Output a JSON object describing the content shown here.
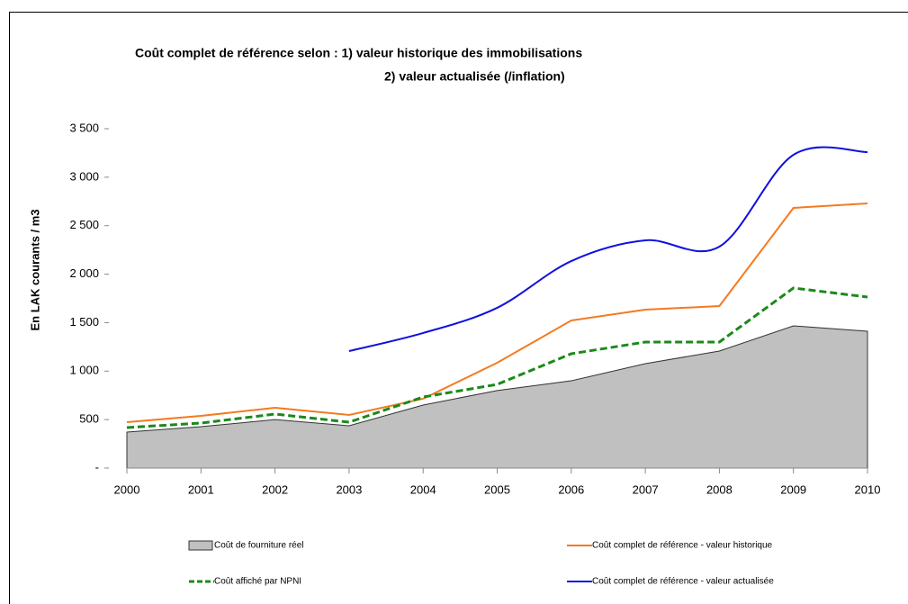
{
  "chart_data": {
    "type": "line",
    "title": "Coût complet de référence selon :   1) valeur historique des immobilisations",
    "subtitle": "2) valeur actualisée (/inflation)",
    "y_label": "En LAK courants / m3",
    "x": [
      2000,
      2001,
      2002,
      2003,
      2004,
      2005,
      2006,
      2007,
      2008,
      2009,
      2010
    ],
    "xlim": [
      2000,
      2010
    ],
    "xticks": [
      2000,
      2001,
      2002,
      2003,
      2004,
      2005,
      2006,
      2007,
      2008,
      2009,
      2010
    ],
    "ylim": [
      0,
      3500
    ],
    "yticks": [
      {
        "value": 0,
        "label": "-"
      },
      500,
      {
        "value": 1000,
        "label": "1 000"
      },
      {
        "value": 1500,
        "label": "1 500"
      },
      {
        "value": 2000,
        "label": "2 000"
      },
      {
        "value": 2500,
        "label": "2 500"
      },
      {
        "value": 3000,
        "label": "3 000"
      },
      {
        "value": 3500,
        "label": "3 500"
      }
    ],
    "legend": "bottom",
    "series": [
      {
        "name": "Coût de fourniture réel",
        "kind": "area",
        "color": "#c0c0c0",
        "values": [
          371,
          427,
          500,
          436,
          650,
          800,
          900,
          1077,
          1207,
          1467,
          1411
        ]
      },
      {
        "name": "Coût complet de référence - valeur historique",
        "kind": "line",
        "color": "#f47a20",
        "values": [
          473,
          538,
          622,
          548,
          715,
          1086,
          1522,
          1634,
          1671,
          2683,
          2730
        ]
      },
      {
        "name": "Coût affiché par NPNI",
        "kind": "line",
        "dash": true,
        "color": "#1a8a1a",
        "values": [
          418,
          464,
          557,
          473,
          733,
          863,
          1179,
          1300,
          1300,
          1857,
          1764
        ]
      },
      {
        "name": "Coût complet de référence - valeur actualisée",
        "kind": "line",
        "smooth": true,
        "color": "#1010e0",
        "values": [
          null,
          null,
          null,
          1207,
          1393,
          1653,
          2135,
          2349,
          2284,
          3231,
          3259
        ]
      }
    ]
  }
}
